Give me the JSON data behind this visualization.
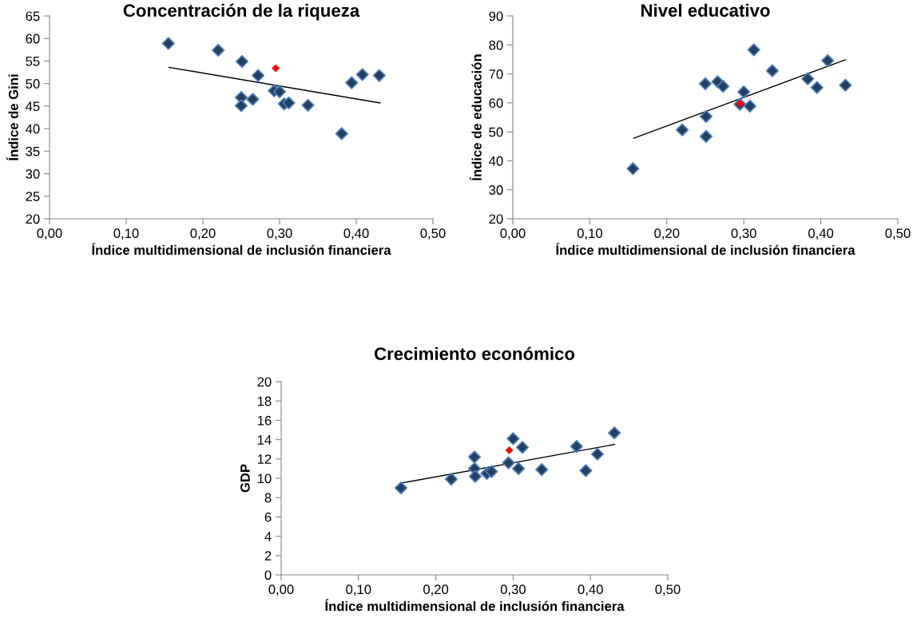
{
  "chart_data": [
    {
      "type": "scatter",
      "title": "Concentración de la riqueza",
      "xlabel": "Índice multidimensional de inclusión financiera",
      "ylabel": "Índice de Gini",
      "marker": "diamond",
      "grid": false,
      "xlim": [
        0,
        0.5
      ],
      "xticks": [
        {
          "value": 0,
          "label": "0,00"
        },
        {
          "value": 0.1,
          "label": "0,10"
        },
        {
          "value": 0.2,
          "label": "0,20"
        },
        {
          "value": 0.3,
          "label": "0,30"
        },
        {
          "value": 0.4,
          "label": "0,40"
        },
        {
          "value": 0.5,
          "label": "0,50"
        }
      ],
      "ylim": [
        20,
        65
      ],
      "yticks": [
        20,
        25,
        30,
        35,
        40,
        45,
        50,
        55,
        60,
        65
      ],
      "series": [
        {
          "color": "#243f60",
          "x": [
            0.155,
            0.22,
            0.25,
            0.25,
            0.251,
            0.265,
            0.272,
            0.293,
            0.3,
            0.306,
            0.312,
            0.337,
            0.381,
            0.394,
            0.408,
            0.43
          ],
          "values": [
            58.9,
            57.4,
            46.9,
            45.1,
            54.9,
            46.5,
            51.8,
            48.4,
            48.2,
            45.5,
            45.7,
            45.2,
            38.9,
            50.2,
            52.0,
            51.8
          ]
        },
        {
          "color": "#ff0000",
          "x": [
            0.295
          ],
          "values": [
            53.4
          ]
        },
        {
          "type": "line",
          "marker": "none",
          "color": "#000000",
          "x": [
            0.156,
            0.431
          ],
          "values": [
            53.6,
            45.7
          ]
        }
      ]
    },
    {
      "type": "scatter",
      "title": "Nivel educativo",
      "xlabel": "Índice multidimensional de inclusión financiera",
      "ylabel": "Índice de educación",
      "marker": "diamond",
      "grid": false,
      "xlim": [
        0,
        0.5
      ],
      "xticks": [
        {
          "value": 0,
          "label": "0,00"
        },
        {
          "value": 0.1,
          "label": "0,10"
        },
        {
          "value": 0.2,
          "label": "0,20"
        },
        {
          "value": 0.3,
          "label": "0,30"
        },
        {
          "value": 0.4,
          "label": "0,40"
        },
        {
          "value": 0.5,
          "label": "0,50"
        }
      ],
      "ylim": [
        20,
        90
      ],
      "yticks": [
        20,
        30,
        40,
        50,
        60,
        70,
        80,
        90
      ],
      "series": [
        {
          "color": "#243f60",
          "x": [
            0.156,
            0.22,
            0.25,
            0.251,
            0.251,
            0.266,
            0.273,
            0.295,
            0.3,
            0.308,
            0.313,
            0.337,
            0.383,
            0.395,
            0.409,
            0.432
          ],
          "values": [
            37.3,
            50.7,
            66.6,
            55.3,
            48.4,
            67.3,
            65.7,
            59.5,
            63.8,
            58.9,
            78.3,
            71.1,
            68.3,
            65.3,
            74.6,
            66.1
          ]
        },
        {
          "color": "#ff0000",
          "x": [
            0.295
          ],
          "values": [
            59.7
          ]
        },
        {
          "type": "line",
          "marker": "none",
          "color": "#000000",
          "x": [
            0.157,
            0.432
          ],
          "values": [
            47.8,
            74.9
          ]
        }
      ]
    },
    {
      "type": "scatter",
      "title": "Crecimiento económico",
      "xlabel": "Índice multidimensional de inclusión financiera",
      "ylabel": "GDP",
      "marker": "diamond",
      "grid": false,
      "xlim": [
        0,
        0.5
      ],
      "xticks": [
        {
          "value": 0,
          "label": "0,00"
        },
        {
          "value": 0.1,
          "label": "0,10"
        },
        {
          "value": 0.2,
          "label": "0,20"
        },
        {
          "value": 0.3,
          "label": "0,30"
        },
        {
          "value": 0.4,
          "label": "0,40"
        },
        {
          "value": 0.5,
          "label": "0,50"
        }
      ],
      "ylim": [
        0,
        20
      ],
      "yticks": [
        0,
        2,
        4,
        6,
        8,
        10,
        12,
        14,
        16,
        18,
        20
      ],
      "series": [
        {
          "color": "#243f60",
          "x": [
            0.155,
            0.22,
            0.25,
            0.25,
            0.251,
            0.266,
            0.272,
            0.294,
            0.3,
            0.307,
            0.312,
            0.337,
            0.382,
            0.394,
            0.409,
            0.431
          ],
          "values": [
            9.0,
            9.9,
            12.2,
            11.0,
            10.2,
            10.5,
            10.7,
            11.6,
            14.1,
            11.0,
            13.2,
            10.9,
            13.3,
            10.8,
            12.5,
            14.7
          ]
        },
        {
          "color": "#ff0000",
          "x": [
            0.295
          ],
          "values": [
            12.9
          ]
        },
        {
          "type": "line",
          "marker": "none",
          "color": "#000000",
          "x": [
            0.155,
            0.431
          ],
          "values": [
            9.5,
            13.5
          ]
        }
      ]
    }
  ]
}
